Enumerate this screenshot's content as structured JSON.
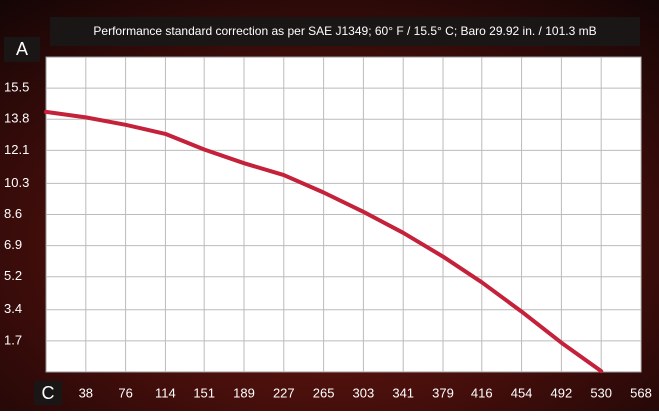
{
  "chart_data": {
    "type": "line",
    "title": "Performance standard correction as per SAE J1349;  60° F / 15.5° C;  Baro 29.92 in. / 101.3 mB",
    "y_label": "A",
    "x_label": "C",
    "xlim": [
      0,
      568
    ],
    "ylim": [
      0,
      17.2
    ],
    "xticks": [
      38,
      76,
      114,
      151,
      189,
      227,
      265,
      303,
      341,
      379,
      416,
      454,
      492,
      530,
      568
    ],
    "yticks": [
      1.7,
      3.4,
      5.2,
      6.9,
      8.6,
      10.3,
      12.1,
      13.8,
      15.5
    ],
    "grid": true,
    "series": [
      {
        "color": "#c4213a",
        "x": [
          0,
          38,
          76,
          114,
          151,
          189,
          227,
          265,
          303,
          341,
          379,
          416,
          454,
          492,
          530
        ],
        "values": [
          14.2,
          13.9,
          13.5,
          13.0,
          12.15,
          11.4,
          10.75,
          9.8,
          8.75,
          7.6,
          6.3,
          4.9,
          3.3,
          1.6,
          0.05
        ]
      }
    ]
  }
}
